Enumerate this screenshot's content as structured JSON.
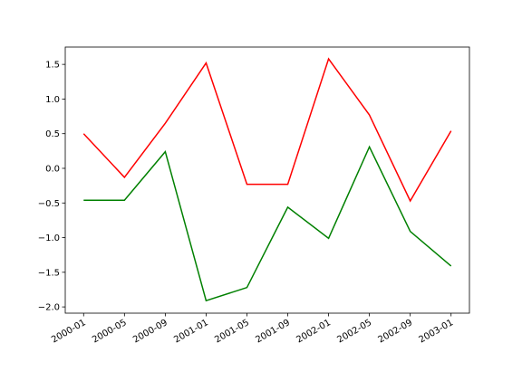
{
  "chart_data": {
    "type": "line",
    "x": [
      "2000-01",
      "2000-05",
      "2000-09",
      "2001-01",
      "2001-05",
      "2001-09",
      "2002-01",
      "2002-05",
      "2002-09",
      "2003-01"
    ],
    "series": [
      {
        "color": "#ff0000",
        "values": [
          0.5,
          -0.13,
          0.65,
          1.52,
          -0.23,
          -0.23,
          1.58,
          0.77,
          -0.47,
          0.54
        ]
      },
      {
        "color": "#008000",
        "values": [
          -0.46,
          -0.46,
          0.24,
          -1.91,
          -1.72,
          -0.56,
          -1.01,
          0.31,
          -0.91,
          -1.41
        ]
      }
    ],
    "ylim": [
      -2.09,
      1.75
    ],
    "yticks": [
      {
        "value": -2,
        "label": "−2.0"
      },
      {
        "value": -1.5,
        "label": "−1.5"
      },
      {
        "value": -1,
        "label": "−1.0"
      },
      {
        "value": -0.5,
        "label": "−0.5"
      },
      {
        "value": 0,
        "label": "0.0"
      },
      {
        "value": 0.5,
        "label": "0.5"
      },
      {
        "value": 1,
        "label": "1.0"
      },
      {
        "value": 1.5,
        "label": "1.5"
      }
    ],
    "grid": false
  }
}
